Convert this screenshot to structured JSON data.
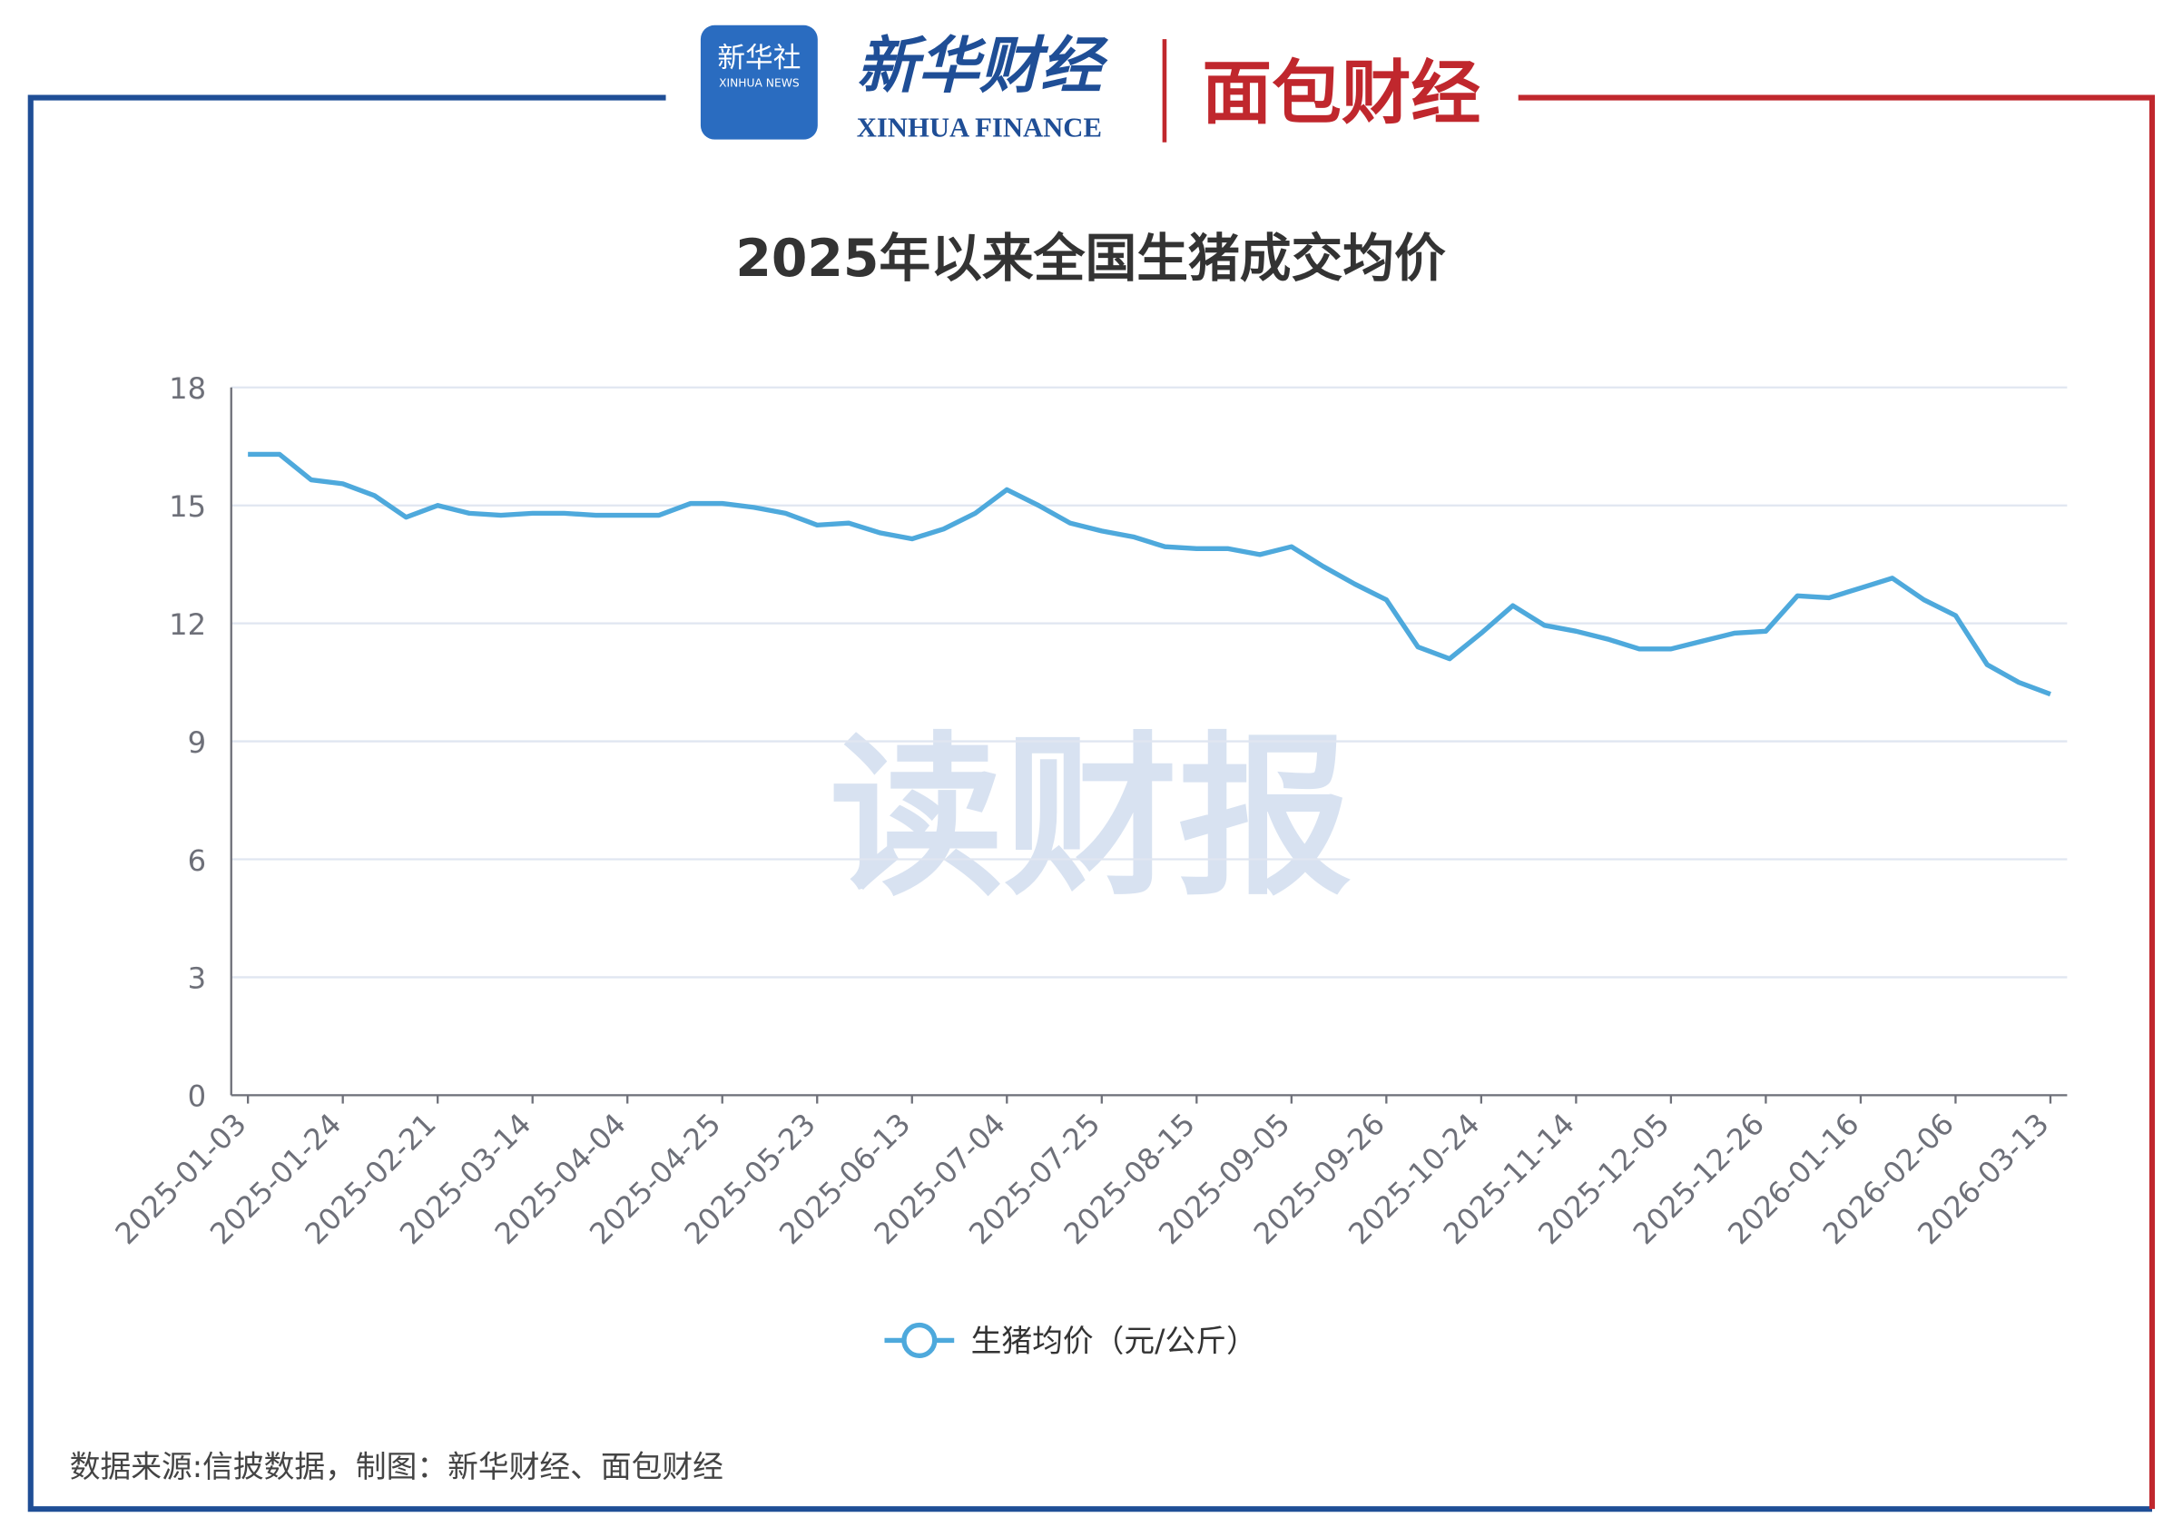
{
  "header": {
    "xinhua_badge": "新华社",
    "xinhua_badge_en": "XINHUA NEWS",
    "xinhua_finance": "新华财经",
    "xinhua_finance_en": "XINHUA FINANCE",
    "mianbao": "面包财经",
    "watermark": "读财报"
  },
  "chart_data": {
    "type": "line",
    "title": "2025年以来全国生猪成交均价",
    "categories": [
      "2025-01-03",
      null,
      null,
      "2025-01-24",
      null,
      null,
      "2025-02-21",
      null,
      null,
      "2025-03-14",
      null,
      null,
      "2025-04-04",
      null,
      null,
      "2025-04-25",
      null,
      null,
      "2025-05-23",
      null,
      null,
      "2025-06-13",
      null,
      null,
      "2025-07-04",
      null,
      null,
      "2025-07-25",
      null,
      null,
      "2025-08-15",
      null,
      null,
      "2025-09-05",
      null,
      null,
      "2025-09-26",
      null,
      null,
      "2025-10-24",
      null,
      null,
      "2025-11-14",
      null,
      null,
      "2025-12-05",
      null,
      null,
      "2025-12-26",
      null,
      null,
      "2026-01-16",
      null,
      null,
      "2026-02-06",
      null,
      null,
      "2026-03-13"
    ],
    "series": [
      {
        "name": "生猪均价（元/公斤）",
        "color": "#4ea9dc",
        "values": [
          16.3,
          16.3,
          15.65,
          15.55,
          15.25,
          14.7,
          15.0,
          14.8,
          14.75,
          14.8,
          14.8,
          14.75,
          14.75,
          14.75,
          15.05,
          15.05,
          14.95,
          14.8,
          14.5,
          14.55,
          14.3,
          14.15,
          14.4,
          14.8,
          15.4,
          15.0,
          14.55,
          14.35,
          14.2,
          13.95,
          13.9,
          13.9,
          13.75,
          13.95,
          13.45,
          13.0,
          12.6,
          11.4,
          11.1,
          11.75,
          12.45,
          11.95,
          11.8,
          11.6,
          11.35,
          11.35,
          11.55,
          11.75,
          11.8,
          12.7,
          12.65,
          12.9,
          13.15,
          12.6,
          12.2,
          10.95,
          10.5,
          10.2
        ]
      }
    ],
    "ylim": [
      0,
      18
    ],
    "yticks": [
      0,
      3,
      6,
      9,
      12,
      15,
      18
    ],
    "grid": true,
    "source": "数据来源:信披数据，制图：新华财经、面包财经"
  }
}
